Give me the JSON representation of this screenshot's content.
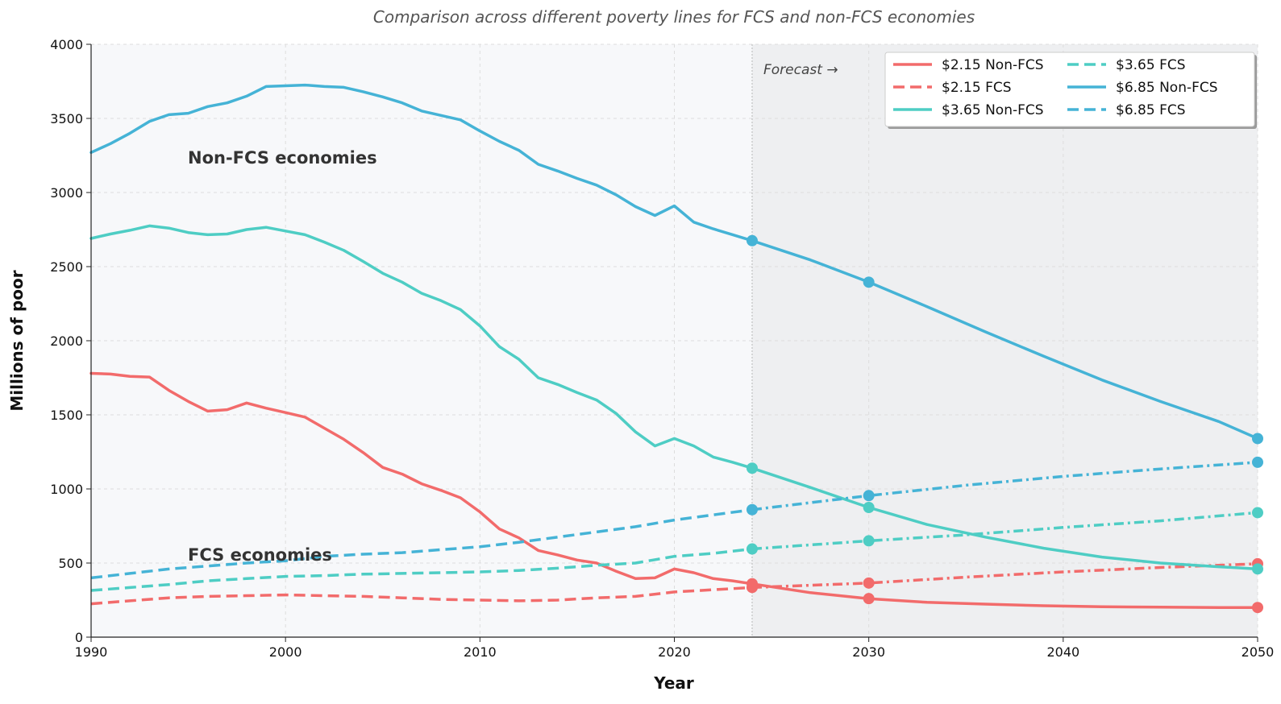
{
  "chart_data": {
    "type": "line",
    "title": "Comparison across different poverty lines for FCS and non-FCS economies",
    "xlabel": "Year",
    "ylabel": "Millions of poor",
    "xlim": [
      1990,
      2050
    ],
    "ylim": [
      0,
      4000
    ],
    "xticks": [
      1990,
      2000,
      2010,
      2020,
      2030,
      2040,
      2050
    ],
    "yticks": [
      0,
      500,
      1000,
      1500,
      2000,
      2500,
      3000,
      3500,
      4000
    ],
    "grid": true,
    "forecast_start": 2024,
    "legend_position": "top-right",
    "annotations": {
      "non_fcs": "Non-FCS economies",
      "fcs": "FCS economies",
      "forecast": "Forecast →"
    },
    "colors": {
      "red": "#f26b6b",
      "teal": "#4ecdc4",
      "blue": "#45b3d6"
    },
    "series": [
      {
        "name": "$2.15 Non-FCS",
        "color": "#f26b6b",
        "dash": "solid",
        "x": [
          1990,
          1991,
          1992,
          1993,
          1994,
          1995,
          1996,
          1997,
          1998,
          1999,
          2000,
          2001,
          2002,
          2003,
          2004,
          2005,
          2006,
          2007,
          2008,
          2009,
          2010,
          2011,
          2012,
          2013,
          2014,
          2015,
          2016,
          2017,
          2018,
          2019,
          2020,
          2021,
          2022,
          2023,
          2024
        ],
        "values": [
          1780,
          1775,
          1760,
          1755,
          1665,
          1590,
          1525,
          1535,
          1580,
          1545,
          1515,
          1485,
          1410,
          1335,
          1245,
          1145,
          1100,
          1035,
          990,
          940,
          845,
          730,
          670,
          585,
          555,
          520,
          500,
          445,
          395,
          400,
          460,
          435,
          395,
          380,
          360
        ],
        "forecast_x": [
          2024,
          2027,
          2030,
          2033,
          2036,
          2039,
          2042,
          2045,
          2048,
          2050
        ],
        "forecast_values": [
          360,
          300,
          260,
          235,
          223,
          212,
          205,
          202,
          200,
          200
        ],
        "markers": [
          [
            2024,
            360
          ],
          [
            2030,
            260
          ],
          [
            2050,
            200
          ]
        ]
      },
      {
        "name": "$2.15 FCS",
        "color": "#f26b6b",
        "dash": "dashed",
        "x": [
          1990,
          1992,
          1994,
          1996,
          1998,
          2000,
          2002,
          2004,
          2006,
          2008,
          2010,
          2012,
          2014,
          2016,
          2018,
          2020,
          2022,
          2024
        ],
        "values": [
          225,
          245,
          265,
          275,
          280,
          285,
          280,
          275,
          265,
          255,
          250,
          245,
          250,
          265,
          275,
          305,
          320,
          335
        ],
        "forecast_x": [
          2024,
          2030,
          2035,
          2040,
          2045,
          2050
        ],
        "forecast_values": [
          335,
          365,
          405,
          440,
          470,
          495
        ],
        "markers": [
          [
            2024,
            335
          ],
          [
            2030,
            365
          ],
          [
            2050,
            495
          ]
        ]
      },
      {
        "name": "$3.65 Non-FCS",
        "color": "#4ecdc4",
        "dash": "solid",
        "x": [
          1990,
          1991,
          1992,
          1993,
          1994,
          1995,
          1996,
          1997,
          1998,
          1999,
          2000,
          2001,
          2002,
          2003,
          2004,
          2005,
          2006,
          2007,
          2008,
          2009,
          2010,
          2011,
          2012,
          2013,
          2014,
          2015,
          2016,
          2017,
          2018,
          2019,
          2020,
          2021,
          2022,
          2023,
          2024
        ],
        "values": [
          2690,
          2720,
          2745,
          2775,
          2760,
          2730,
          2715,
          2720,
          2750,
          2765,
          2740,
          2715,
          2665,
          2610,
          2535,
          2455,
          2395,
          2320,
          2270,
          2210,
          2100,
          1960,
          1875,
          1750,
          1705,
          1650,
          1600,
          1510,
          1385,
          1290,
          1340,
          1290,
          1215,
          1180,
          1140
        ],
        "forecast_x": [
          2024,
          2027,
          2030,
          2033,
          2036,
          2039,
          2042,
          2045,
          2048,
          2050
        ],
        "forecast_values": [
          1140,
          1010,
          875,
          760,
          675,
          600,
          540,
          500,
          475,
          460
        ],
        "markers": [
          [
            2024,
            1140
          ],
          [
            2030,
            875
          ],
          [
            2050,
            460
          ]
        ]
      },
      {
        "name": "$3.65 FCS",
        "color": "#4ecdc4",
        "dash": "dashed",
        "x": [
          1990,
          1992,
          1994,
          1996,
          1998,
          2000,
          2002,
          2004,
          2006,
          2008,
          2010,
          2012,
          2014,
          2016,
          2018,
          2020,
          2022,
          2024
        ],
        "values": [
          315,
          335,
          355,
          380,
          395,
          410,
          415,
          425,
          430,
          435,
          440,
          450,
          465,
          485,
          500,
          545,
          565,
          595
        ],
        "forecast_x": [
          2024,
          2030,
          2035,
          2040,
          2045,
          2050
        ],
        "forecast_values": [
          595,
          650,
          690,
          740,
          785,
          840
        ],
        "markers": [
          [
            2024,
            595
          ],
          [
            2030,
            650
          ],
          [
            2050,
            840
          ]
        ]
      },
      {
        "name": "$6.85 Non-FCS",
        "color": "#45b3d6",
        "dash": "solid",
        "x": [
          1990,
          1991,
          1992,
          1993,
          1994,
          1995,
          1996,
          1997,
          1998,
          1999,
          2000,
          2001,
          2002,
          2003,
          2004,
          2005,
          2006,
          2007,
          2008,
          2009,
          2010,
          2011,
          2012,
          2013,
          2014,
          2015,
          2016,
          2017,
          2018,
          2019,
          2020,
          2021,
          2022,
          2023,
          2024
        ],
        "values": [
          3270,
          3330,
          3400,
          3480,
          3525,
          3535,
          3580,
          3605,
          3650,
          3715,
          3720,
          3725,
          3715,
          3710,
          3680,
          3645,
          3605,
          3550,
          3520,
          3490,
          3415,
          3345,
          3285,
          3190,
          3145,
          3095,
          3050,
          2985,
          2905,
          2845,
          2910,
          2800,
          2755,
          2715,
          2675
        ],
        "forecast_x": [
          2024,
          2027,
          2030,
          2033,
          2036,
          2039,
          2042,
          2045,
          2048,
          2050
        ],
        "forecast_values": [
          2675,
          2545,
          2395,
          2230,
          2060,
          1895,
          1735,
          1590,
          1455,
          1340
        ],
        "markers": [
          [
            2024,
            2675
          ],
          [
            2030,
            2395
          ],
          [
            2050,
            1340
          ]
        ]
      },
      {
        "name": "$6.85 FCS",
        "color": "#45b3d6",
        "dash": "dashed",
        "x": [
          1990,
          1992,
          1994,
          1996,
          1998,
          2000,
          2002,
          2004,
          2006,
          2008,
          2010,
          2012,
          2014,
          2016,
          2018,
          2020,
          2022,
          2024
        ],
        "values": [
          400,
          430,
          460,
          480,
          500,
          515,
          545,
          560,
          570,
          590,
          610,
          640,
          675,
          710,
          745,
          790,
          825,
          860
        ],
        "forecast_x": [
          2024,
          2030,
          2035,
          2040,
          2045,
          2050
        ],
        "forecast_values": [
          860,
          955,
          1025,
          1085,
          1135,
          1180
        ],
        "markers": [
          [
            2024,
            860
          ],
          [
            2030,
            955
          ],
          [
            2050,
            1180
          ]
        ]
      }
    ]
  }
}
